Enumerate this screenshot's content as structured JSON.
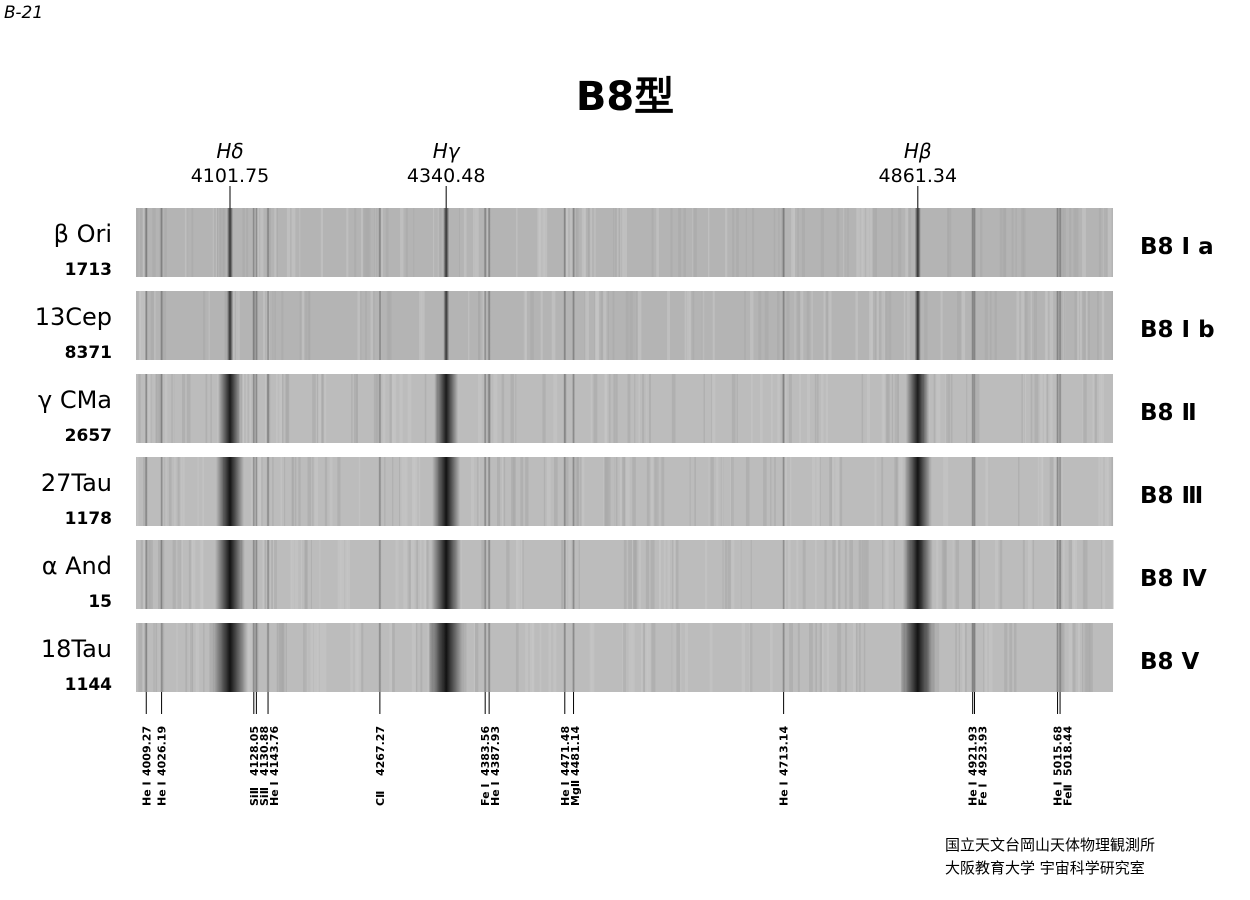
{
  "page_label": "B-21",
  "title": "B8型",
  "hydrogen_lines": [
    {
      "label": "Hδ",
      "wavelength": 4101.75
    },
    {
      "label": "Hγ",
      "wavelength": 4340.48
    },
    {
      "label": "Hβ",
      "wavelength": 4861.34
    }
  ],
  "stars": [
    {
      "name": "β Ori",
      "number": "1713",
      "class": "B8 Ⅰ a"
    },
    {
      "name": "13Cep",
      "number": "8371",
      "class": "B8 Ⅰ b"
    },
    {
      "name": "γ CMa",
      "number": "2657",
      "class": "B8 Ⅱ"
    },
    {
      "name": "27Tau",
      "number": "1178",
      "class": "B8 Ⅲ"
    },
    {
      "name": "α And",
      "number": "15",
      "class": "B8 Ⅳ"
    },
    {
      "name": "18Tau",
      "number": "1144",
      "class": "B8 Ⅴ"
    }
  ],
  "lines": [
    {
      "element": "He Ⅰ",
      "wavelength": 4009.27
    },
    {
      "element": "He Ⅰ",
      "wavelength": 4026.19
    },
    {
      "element": "SiⅡ",
      "wavelength": 4128.05
    },
    {
      "element": "SiⅡ",
      "wavelength": 4130.88
    },
    {
      "element": "He Ⅰ",
      "wavelength": 4143.76
    },
    {
      "element": "CⅡ",
      "wavelength": 4267.27
    },
    {
      "element": "Fe Ⅰ",
      "wavelength": 4383.56
    },
    {
      "element": "He Ⅰ",
      "wavelength": 4387.93
    },
    {
      "element": "He Ⅰ",
      "wavelength": 4471.48
    },
    {
      "element": "MgⅡ",
      "wavelength": 4481.14
    },
    {
      "element": "He Ⅰ",
      "wavelength": 4713.14
    },
    {
      "element": "He Ⅰ",
      "wavelength": 4921.93
    },
    {
      "element": "Fe Ⅰ",
      "wavelength": 4923.93
    },
    {
      "element": "He Ⅰ",
      "wavelength": 5015.68
    },
    {
      "element": "FeⅡ",
      "wavelength": 5018.44
    }
  ],
  "credits": [
    "国立天文台岡山天体物理観測所",
    "大阪教育大学 宇宙科学研究室"
  ]
}
